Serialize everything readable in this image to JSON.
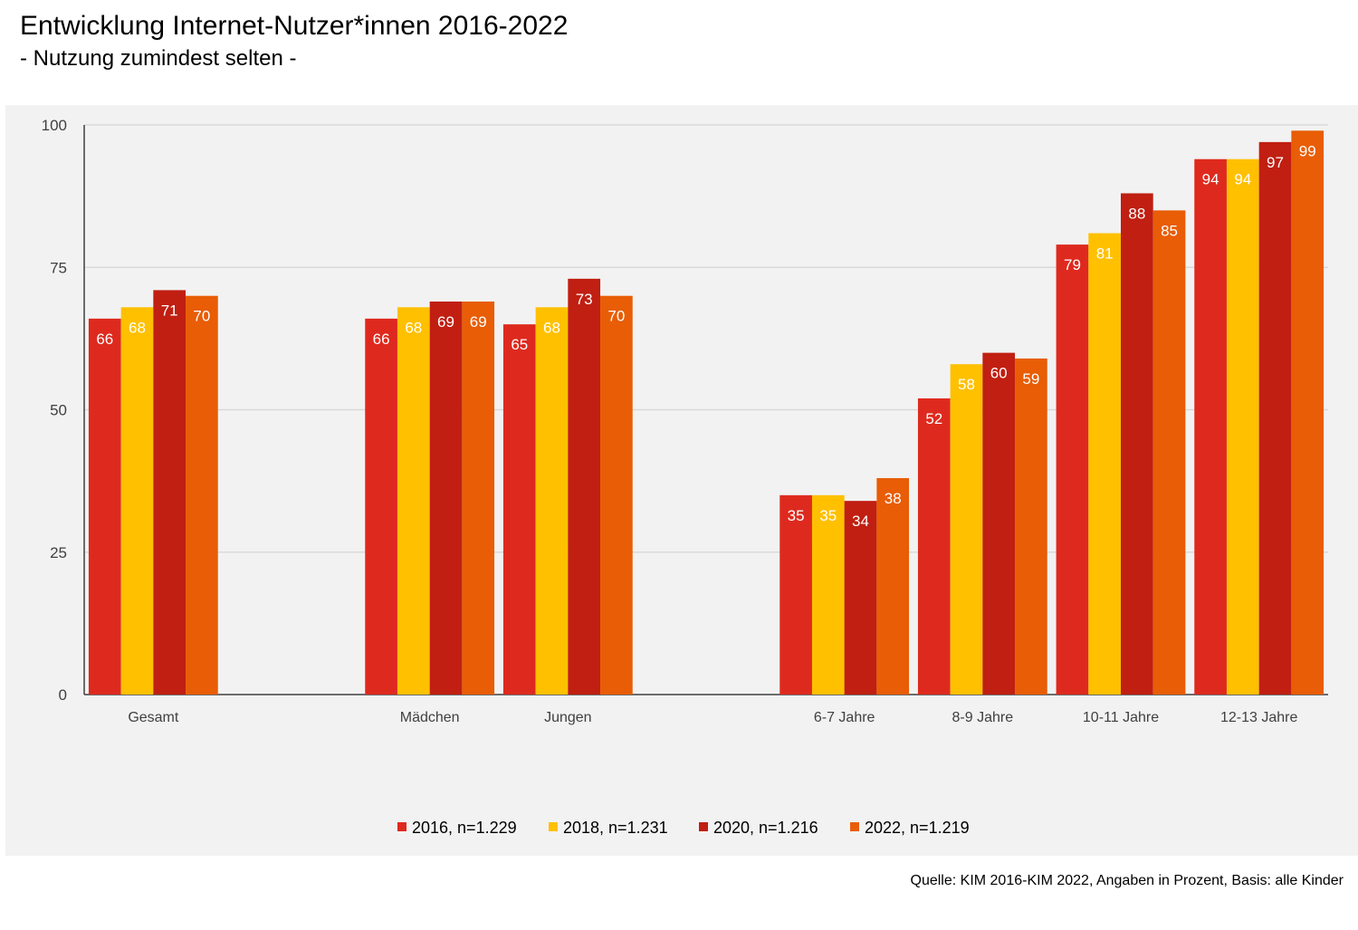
{
  "title": "Entwicklung Internet-Nutzer*innen  2016-2022",
  "subtitle": "- Nutzung zumindest selten -",
  "source": "Quelle: KIM 2016-KIM 2022, Angaben in Prozent, Basis: alle Kinder",
  "chart_data": {
    "type": "bar",
    "categories": [
      "Gesamt",
      "",
      "Mädchen",
      "Jungen",
      "",
      "6-7 Jahre",
      "8-9 Jahre",
      "10-11 Jahre",
      "12-13 Jahre"
    ],
    "series": [
      {
        "name": "2016, n=1.229",
        "color": "#de2a1e",
        "label_color": "#ffffff",
        "values": [
          66,
          null,
          66,
          65,
          null,
          35,
          52,
          79,
          94
        ]
      },
      {
        "name": "2018, n=1.231",
        "color": "#ffc000",
        "label_color": "#ffffff",
        "values": [
          68,
          null,
          68,
          68,
          null,
          35,
          58,
          81,
          94
        ]
      },
      {
        "name": "2020, n=1.216",
        "color": "#c01f12",
        "label_color": "#ffffff",
        "values": [
          71,
          null,
          69,
          73,
          null,
          34,
          60,
          88,
          97
        ]
      },
      {
        "name": "2022, n=1.219",
        "color": "#e85d06",
        "label_color": "#ffffff",
        "values": [
          70,
          null,
          69,
          70,
          null,
          38,
          59,
          85,
          99
        ]
      }
    ],
    "ylim": [
      0,
      100
    ],
    "yticks": [
      0,
      25,
      50,
      75,
      100
    ],
    "grid": true,
    "legend": "bottom"
  }
}
